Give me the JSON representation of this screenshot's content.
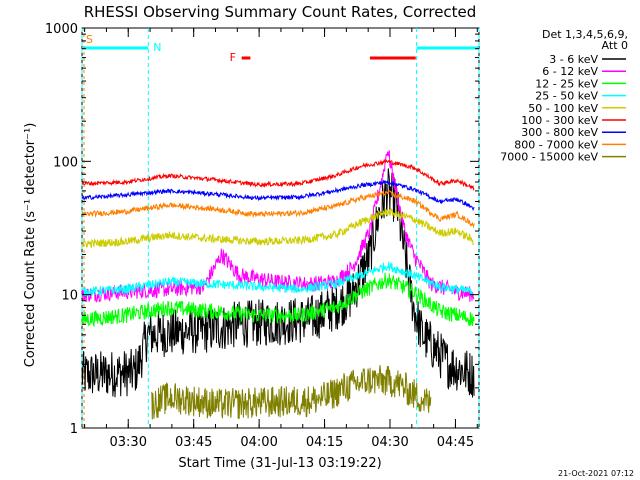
{
  "chart_data": {
    "type": "line",
    "title": "RHESSI Observing Summary Count Rates, Corrected",
    "ylabel": "Corrected Count Rate (s⁻¹ detector⁻¹)",
    "xlabel": "Start Time (31-Jul-13 03:19:22)",
    "y_scale": "log",
    "ylim": [
      1,
      1000
    ],
    "y_ticks": [
      1,
      10,
      100,
      1000
    ],
    "y_tick_labels": [
      "1",
      "10",
      "100",
      "1000"
    ],
    "x_start_minutes": 0,
    "x_end_minutes": 91,
    "x_ticks_minutes": [
      10.6,
      25.6,
      40.6,
      55.6,
      70.6,
      85.6
    ],
    "x_tick_labels": [
      "03:30",
      "03:45",
      "04:00",
      "04:15",
      "04:30",
      "04:45"
    ],
    "legend_header": [
      "Det 1,3,4,5,6,9,",
      "Att 0"
    ],
    "flag_labels": {
      "saa": "S",
      "night": "N",
      "flare": "F"
    },
    "footer_date": "21-Oct-2021 07:12",
    "colors": {
      "line_3_6": "#000000",
      "line_6_12": "#ff00ff",
      "line_12_25": "#00ff00",
      "line_25_50": "#00ffff",
      "line_50_100": "#cccc00",
      "line_100_300": "#ff0000",
      "line_300_800": "#0000ff",
      "line_800_7000": "#ff8000",
      "line_7000_15000": "#808000",
      "flag_bar": "#00ffff",
      "flare_bar": "#ff0000",
      "saa_label": "#ff8000"
    },
    "series": [
      {
        "name": "3 - 6 keV",
        "color": "#000000",
        "points": [
          [
            0,
            2.5
          ],
          [
            12,
            2.6
          ],
          [
            13,
            3
          ],
          [
            15,
            5
          ],
          [
            30,
            5.5
          ],
          [
            36,
            6
          ],
          [
            44,
            6.2
          ],
          [
            52,
            6.5
          ],
          [
            58,
            8
          ],
          [
            62,
            10
          ],
          [
            66,
            20
          ],
          [
            68,
            40
          ],
          [
            70,
            60
          ],
          [
            72,
            50
          ],
          [
            74,
            20
          ],
          [
            76,
            8
          ],
          [
            78,
            5
          ],
          [
            84,
            3
          ],
          [
            90,
            2.5
          ]
        ]
      },
      {
        "name": "6 - 12 keV",
        "color": "#ff00ff",
        "points": [
          [
            0,
            10
          ],
          [
            10,
            10.5
          ],
          [
            20,
            11
          ],
          [
            28,
            11.5
          ],
          [
            32,
            20
          ],
          [
            36,
            14
          ],
          [
            44,
            12.5
          ],
          [
            52,
            12
          ],
          [
            58,
            12.5
          ],
          [
            62,
            16
          ],
          [
            66,
            30
          ],
          [
            69,
            80
          ],
          [
            70,
            125
          ],
          [
            72,
            60
          ],
          [
            74,
            30
          ],
          [
            76,
            20
          ],
          [
            80,
            12
          ],
          [
            86,
            10.5
          ],
          [
            90,
            10
          ]
        ]
      },
      {
        "name": "12 - 25 keV",
        "color": "#00ff00",
        "points": [
          [
            0,
            6.5
          ],
          [
            10,
            7
          ],
          [
            20,
            8
          ],
          [
            30,
            7.5
          ],
          [
            40,
            7
          ],
          [
            50,
            7
          ],
          [
            58,
            8
          ],
          [
            64,
            10.5
          ],
          [
            70,
            13
          ],
          [
            76,
            10.5
          ],
          [
            82,
            7.5
          ],
          [
            90,
            6.5
          ]
        ]
      },
      {
        "name": "25 - 50 keV",
        "color": "#00ffff",
        "points": [
          [
            0,
            10.5
          ],
          [
            10,
            11
          ],
          [
            20,
            12.5
          ],
          [
            30,
            12
          ],
          [
            40,
            11.5
          ],
          [
            50,
            11
          ],
          [
            58,
            12
          ],
          [
            64,
            14
          ],
          [
            70,
            16.5
          ],
          [
            76,
            14
          ],
          [
            82,
            11.5
          ],
          [
            90,
            10.5
          ]
        ]
      },
      {
        "name": "50 - 100 keV",
        "color": "#cccc00",
        "points": [
          [
            0,
            24
          ],
          [
            10,
            25
          ],
          [
            20,
            28
          ],
          [
            28,
            26.5
          ],
          [
            40,
            25
          ],
          [
            50,
            25.5
          ],
          [
            58,
            28
          ],
          [
            64,
            35
          ],
          [
            70,
            42
          ],
          [
            76,
            37
          ],
          [
            82,
            29
          ],
          [
            86,
            30
          ],
          [
            90,
            25
          ]
        ]
      },
      {
        "name": "100 - 300 keV",
        "color": "#ff0000",
        "points": [
          [
            0,
            68
          ],
          [
            10,
            70
          ],
          [
            20,
            78
          ],
          [
            30,
            73
          ],
          [
            40,
            67
          ],
          [
            50,
            68
          ],
          [
            58,
            78
          ],
          [
            64,
            92
          ],
          [
            70,
            100
          ],
          [
            76,
            90
          ],
          [
            82,
            68
          ],
          [
            86,
            72
          ],
          [
            90,
            62
          ]
        ]
      },
      {
        "name": "300 - 800 keV",
        "color": "#0000ff",
        "points": [
          [
            0,
            53
          ],
          [
            10,
            56
          ],
          [
            20,
            60
          ],
          [
            30,
            57
          ],
          [
            40,
            53
          ],
          [
            50,
            54
          ],
          [
            58,
            60
          ],
          [
            64,
            66
          ],
          [
            70,
            70
          ],
          [
            76,
            62
          ],
          [
            82,
            50
          ],
          [
            86,
            52
          ],
          [
            90,
            44
          ]
        ]
      },
      {
        "name": "800 - 7000 keV",
        "color": "#ff8000",
        "points": [
          [
            0,
            40
          ],
          [
            10,
            42
          ],
          [
            20,
            47
          ],
          [
            30,
            44
          ],
          [
            40,
            40
          ],
          [
            50,
            41
          ],
          [
            58,
            46
          ],
          [
            64,
            53
          ],
          [
            70,
            58
          ],
          [
            76,
            51
          ],
          [
            82,
            37
          ],
          [
            86,
            40
          ],
          [
            90,
            33
          ]
        ]
      },
      {
        "name": "7000 - 15000 keV",
        "color": "#808000",
        "points": [
          [
            16,
            1.5
          ],
          [
            20,
            1.7
          ],
          [
            26,
            1.6
          ],
          [
            31,
            1.5
          ],
          [
            52,
            1.6
          ],
          [
            56,
            1.7
          ],
          [
            60,
            2
          ],
          [
            66,
            2.3
          ],
          [
            72,
            2.2
          ],
          [
            76,
            1.8
          ],
          [
            80,
            1.5
          ]
        ]
      }
    ],
    "night_intervals_minutes": [
      [
        0,
        15.2
      ],
      [
        76.7,
        91
      ]
    ],
    "flare_intervals_minutes": [
      [
        36.6,
        38.6
      ],
      [
        66,
        76.5
      ]
    ],
    "saa_interval_minutes": [
      [
        0,
        1.5
      ]
    ]
  }
}
